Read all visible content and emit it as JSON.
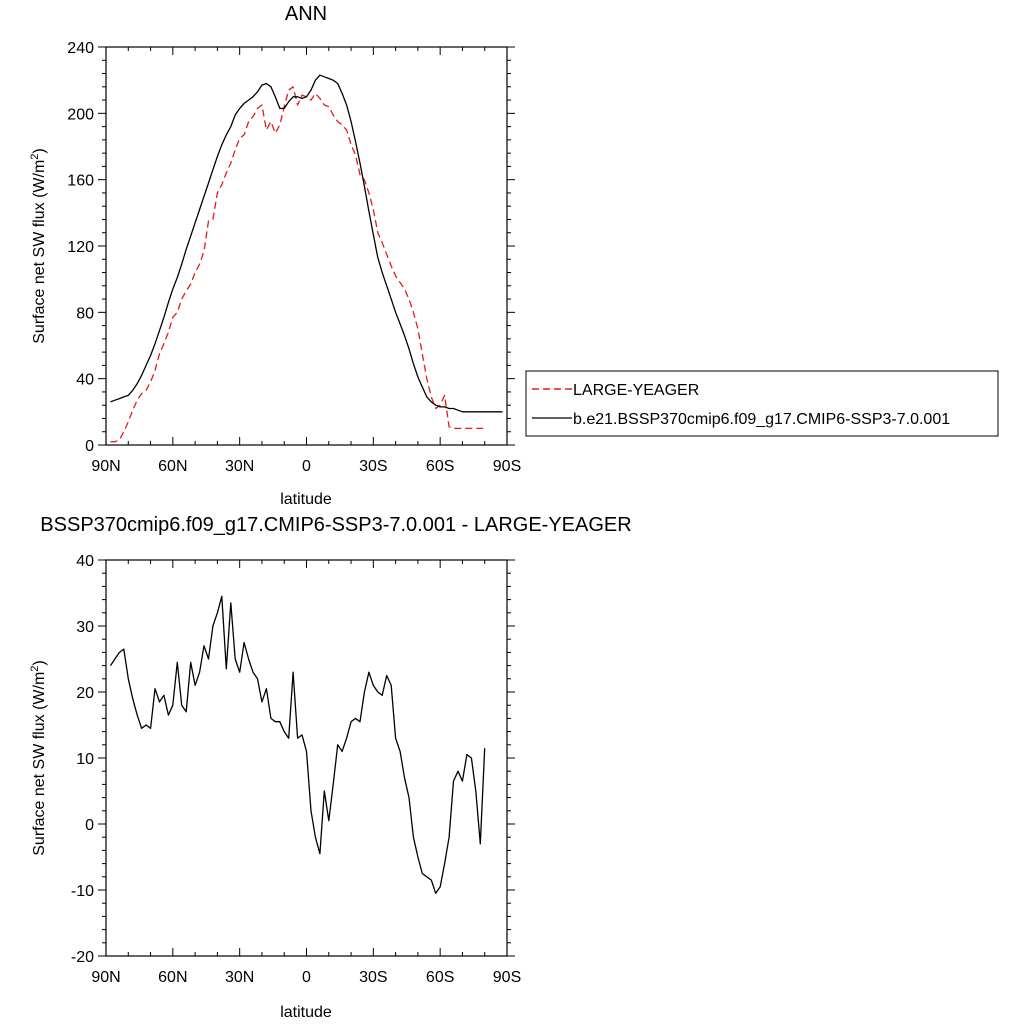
{
  "charts": [
    {
      "title": "ANN",
      "type": "line",
      "xlabel": "latitude",
      "ylabel_main": "Surface net SW flux (W/m",
      "ylabel_sup": "2",
      "ylabel_tail": ")",
      "xlim": [
        -90,
        90
      ],
      "ylim": [
        0,
        240
      ],
      "x_ticks": [
        -90,
        -60,
        -30,
        0,
        30,
        60,
        90
      ],
      "x_tick_labels": [
        "90N",
        "60N",
        "30N",
        "0",
        "30S",
        "60S",
        "90S"
      ],
      "y_ticks": [
        0,
        40,
        80,
        120,
        160,
        200,
        240
      ],
      "y_tick_labels": [
        "0",
        "40",
        "80",
        "120",
        "160",
        "200",
        "240"
      ],
      "series": [
        {
          "name": "LARGE-YEAGER",
          "color": "#e41a1c",
          "dash": true,
          "x": [
            -88,
            -86,
            -84,
            -82,
            -80,
            -78,
            -76,
            -74,
            -72,
            -70,
            -68,
            -66,
            -64,
            -62,
            -60,
            -58,
            -56,
            -54,
            -52,
            -50,
            -48,
            -46,
            -44,
            -42,
            -40,
            -38,
            -36,
            -34,
            -32,
            -30,
            -28,
            -26,
            -24,
            -22,
            -20,
            -18,
            -16,
            -14,
            -12,
            -10,
            -8,
            -6,
            -4,
            -2,
            0,
            2,
            4,
            6,
            8,
            10,
            12,
            14,
            16,
            18,
            20,
            22,
            24,
            26,
            28,
            30,
            32,
            34,
            36,
            38,
            40,
            42,
            44,
            46,
            48,
            50,
            52,
            54,
            56,
            58,
            60,
            62,
            64,
            66,
            68,
            70,
            72,
            74,
            76,
            78,
            80
          ],
          "y": [
            2,
            2,
            3,
            8,
            14,
            21,
            27,
            31,
            33,
            38,
            45,
            55,
            61,
            68,
            77,
            80,
            88,
            93,
            97,
            104,
            109,
            117,
            135,
            136,
            152,
            157,
            164,
            170,
            178,
            185,
            187,
            195,
            198,
            203,
            205,
            190,
            195,
            188,
            193,
            204,
            214,
            216,
            205,
            211,
            210,
            208,
            212,
            209,
            205,
            204,
            199,
            195,
            193,
            190,
            181,
            175,
            163,
            160,
            152,
            142,
            128,
            122,
            115,
            108,
            102,
            98,
            94,
            88,
            80,
            70,
            55,
            40,
            29,
            22,
            24,
            30,
            11,
            10,
            10,
            10,
            10,
            10,
            10,
            10,
            10
          ]
        },
        {
          "name": "b.e21.BSSP370cmip6.f09_g17.CMIP6-SSP3-7.0.001",
          "color": "#000000",
          "dash": false,
          "x": [
            -88,
            -86,
            -84,
            -82,
            -80,
            -78,
            -76,
            -74,
            -72,
            -70,
            -68,
            -66,
            -64,
            -62,
            -60,
            -58,
            -56,
            -54,
            -52,
            -50,
            -48,
            -46,
            -44,
            -42,
            -40,
            -38,
            -36,
            -34,
            -32,
            -30,
            -28,
            -26,
            -24,
            -22,
            -20,
            -18,
            -16,
            -14,
            -12,
            -10,
            -8,
            -6,
            -4,
            -2,
            0,
            2,
            4,
            6,
            8,
            10,
            12,
            14,
            16,
            18,
            20,
            22,
            24,
            26,
            28,
            30,
            32,
            34,
            36,
            38,
            40,
            42,
            44,
            46,
            48,
            50,
            52,
            54,
            56,
            58,
            60,
            62,
            64,
            66,
            68,
            70,
            72,
            74,
            76,
            78,
            80,
            82,
            84,
            86,
            88
          ],
          "y": [
            26,
            27,
            28,
            29,
            30,
            33,
            37,
            42,
            48,
            54,
            61,
            69,
            77,
            86,
            94,
            101,
            109,
            118,
            126,
            134,
            142,
            150,
            158,
            166,
            174,
            181,
            187,
            192,
            199,
            203,
            206,
            208,
            210,
            213,
            217,
            218,
            216,
            210,
            203,
            203,
            207,
            210,
            210,
            209,
            210,
            214,
            220,
            223,
            222,
            221,
            220,
            218,
            212,
            205,
            195,
            183,
            170,
            156,
            141,
            127,
            113,
            104,
            96,
            88,
            80,
            73,
            66,
            58,
            49,
            41,
            35,
            29,
            26,
            24,
            23,
            23,
            22,
            22,
            21,
            20,
            20,
            20,
            20,
            20,
            20,
            20,
            20,
            20,
            20
          ]
        }
      ]
    },
    {
      "title": "BSSP370cmip6.f09_g17.CMIP6-SSP3-7.0.001 - LARGE-YEAGER",
      "type": "line",
      "xlabel": "latitude",
      "ylabel_main": "Surface net SW flux (W/m",
      "ylabel_sup": "2",
      "ylabel_tail": ")",
      "xlim": [
        -90,
        90
      ],
      "ylim": [
        -20,
        40
      ],
      "x_ticks": [
        -90,
        -60,
        -30,
        0,
        30,
        60,
        90
      ],
      "x_tick_labels": [
        "90N",
        "60N",
        "30N",
        "0",
        "30S",
        "60S",
        "90S"
      ],
      "y_ticks": [
        -20,
        -10,
        0,
        10,
        20,
        30,
        40
      ],
      "y_tick_labels": [
        "-20",
        "-10",
        "0",
        "10",
        "20",
        "30",
        "40"
      ],
      "series": [
        {
          "name": "",
          "color": "#000000",
          "dash": false,
          "x": [
            -88,
            -86,
            -84,
            -82,
            -80,
            -78,
            -76,
            -74,
            -72,
            -70,
            -68,
            -66,
            -64,
            -62,
            -60,
            -58,
            -56,
            -54,
            -52,
            -50,
            -48,
            -46,
            -44,
            -42,
            -40,
            -38,
            -36,
            -34,
            -32,
            -30,
            -28,
            -26,
            -24,
            -22,
            -20,
            -18,
            -16,
            -14,
            -12,
            -10,
            -8,
            -6,
            -4,
            -2,
            0,
            2,
            4,
            6,
            8,
            10,
            12,
            14,
            16,
            18,
            20,
            22,
            24,
            26,
            28,
            30,
            32,
            34,
            36,
            38,
            40,
            42,
            44,
            46,
            48,
            50,
            52,
            54,
            56,
            58,
            60,
            62,
            64,
            66,
            68,
            70,
            72,
            74,
            76,
            78,
            80
          ],
          "y": [
            24,
            25,
            26,
            26.5,
            22,
            19,
            16.5,
            14.5,
            15,
            14.5,
            20.5,
            18.5,
            19.5,
            16.5,
            18,
            24.5,
            18,
            17,
            24.5,
            21,
            23,
            27,
            25,
            30,
            32,
            34.5,
            23.5,
            33.5,
            25,
            23,
            27.5,
            25,
            23,
            22,
            18.5,
            20.5,
            16,
            15.5,
            15.5,
            14,
            13,
            23,
            13,
            13.5,
            11,
            2,
            -2,
            -4.5,
            5,
            0.5,
            6,
            12,
            11,
            13,
            15.5,
            16,
            15.5,
            20,
            23,
            21,
            20,
            19.5,
            22.5,
            21,
            13,
            11,
            7,
            4,
            -2,
            -5,
            -7.5,
            -8,
            -8.5,
            -10.5,
            -9.5,
            -6,
            -2,
            6.5,
            8,
            6.5,
            10.5,
            10,
            5,
            -3,
            11.5
          ]
        }
      ]
    }
  ],
  "legend": [
    {
      "label": "LARGE-YEAGER",
      "color": "#e41a1c",
      "dash": true
    },
    {
      "label": "b.e21.BSSP370cmip6.f09_g17.CMIP6-SSP3-7.0.001",
      "color": "#000000",
      "dash": false
    }
  ]
}
